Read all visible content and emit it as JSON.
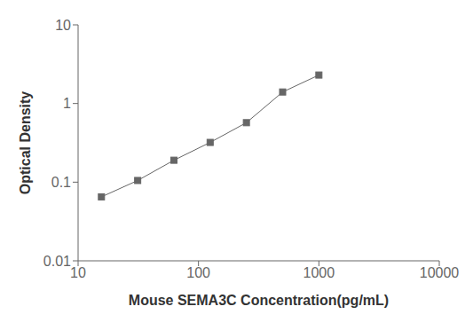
{
  "chart_data": {
    "type": "line",
    "xlabel": "Mouse SEMA3C Concentration(pg/mL)",
    "ylabel": "Optical Density",
    "x": [
      15.625,
      31.25,
      62.5,
      125,
      250,
      500,
      1000
    ],
    "values": [
      0.065,
      0.105,
      0.19,
      0.32,
      0.57,
      1.4,
      2.3
    ],
    "color": "#666666",
    "marker": "square",
    "xlim": [
      10,
      10000
    ],
    "ylim": [
      0.01,
      10
    ],
    "xticks": [
      10,
      100,
      1000,
      10000
    ],
    "yticks": [
      0.01,
      0.1,
      1,
      10
    ],
    "log": true,
    "grid": false
  }
}
